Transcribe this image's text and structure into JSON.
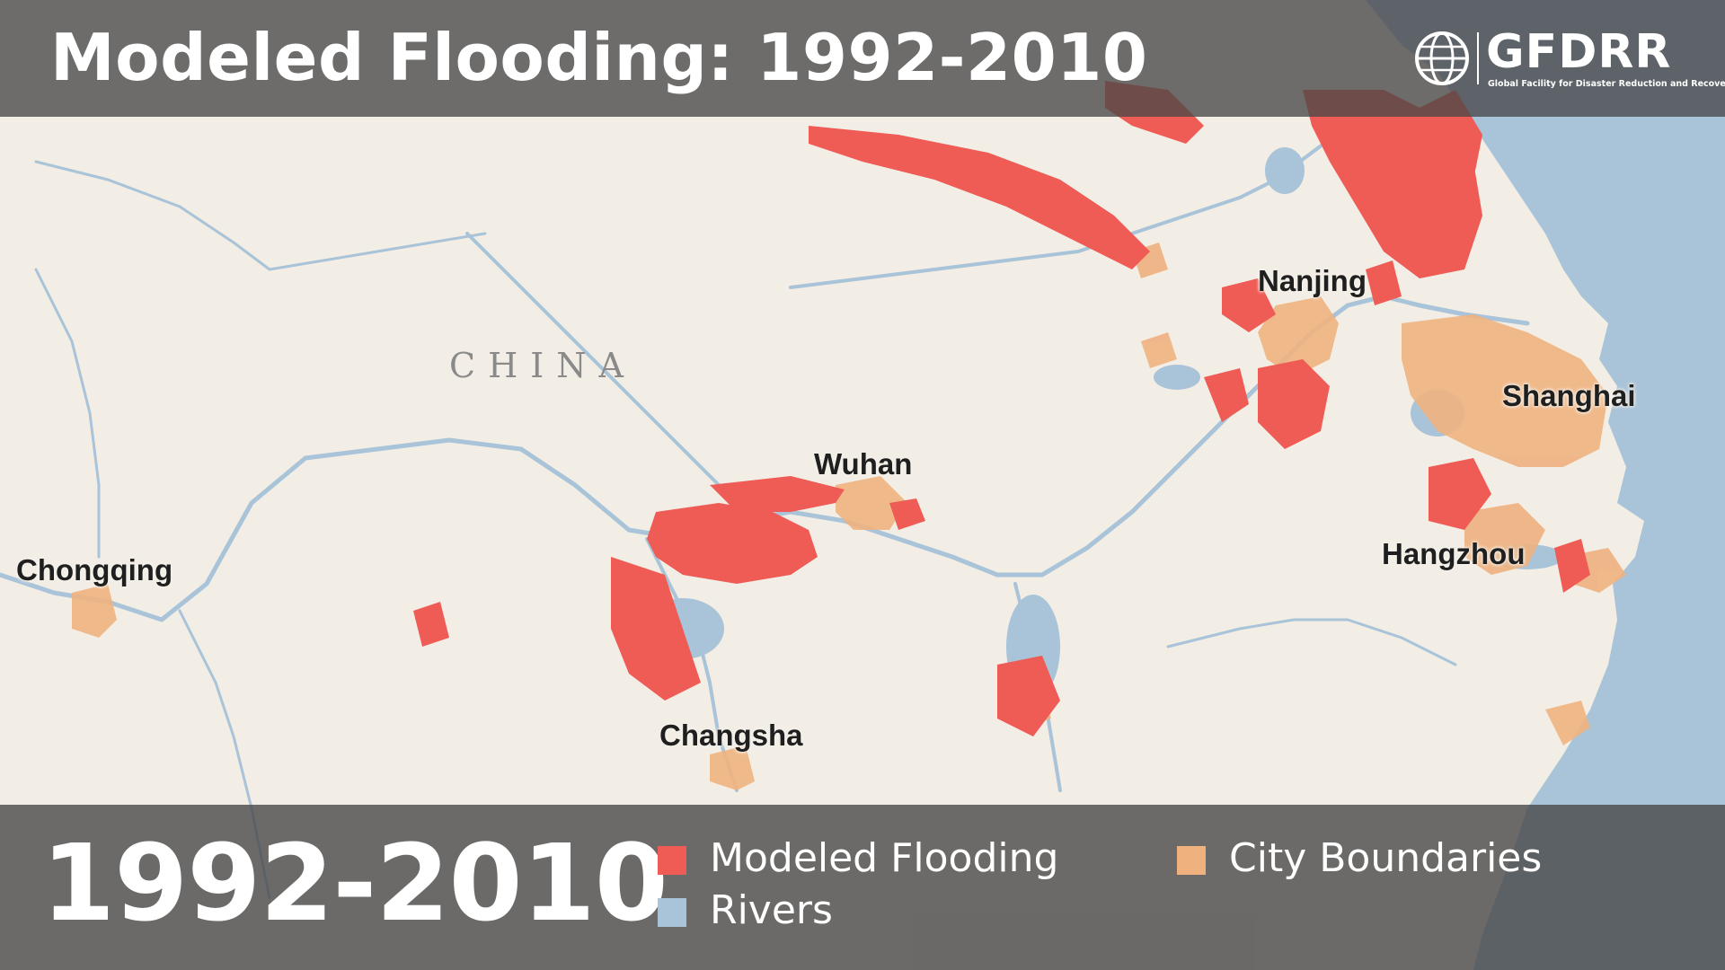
{
  "header": {
    "title": "Modeled Flooding: 1992-2010",
    "logo_text": "GFDRR",
    "logo_subtitle": "Global Facility for Disaster Reduction and Recovery"
  },
  "footer": {
    "year_range": "1992-2010"
  },
  "legend": [
    {
      "label": "Modeled Flooding",
      "color": "#ef5b55"
    },
    {
      "label": "Rivers",
      "color": "#a9c3d8"
    },
    {
      "label": "City Boundaries",
      "color": "#efb27f"
    }
  ],
  "map": {
    "country_label": "CHINA",
    "cities": [
      {
        "name": "Nanjing"
      },
      {
        "name": "Shanghai"
      },
      {
        "name": "Wuhan"
      },
      {
        "name": "Hangzhou"
      },
      {
        "name": "Chongqing"
      },
      {
        "name": "Changsha"
      }
    ],
    "colors": {
      "land": "#f2eee6",
      "sea": "#a9c3d8",
      "flood": "#ef5b55",
      "river": "#a9c3d8",
      "city_boundary": "#efb27f",
      "overlay_bar": "#484848"
    }
  }
}
